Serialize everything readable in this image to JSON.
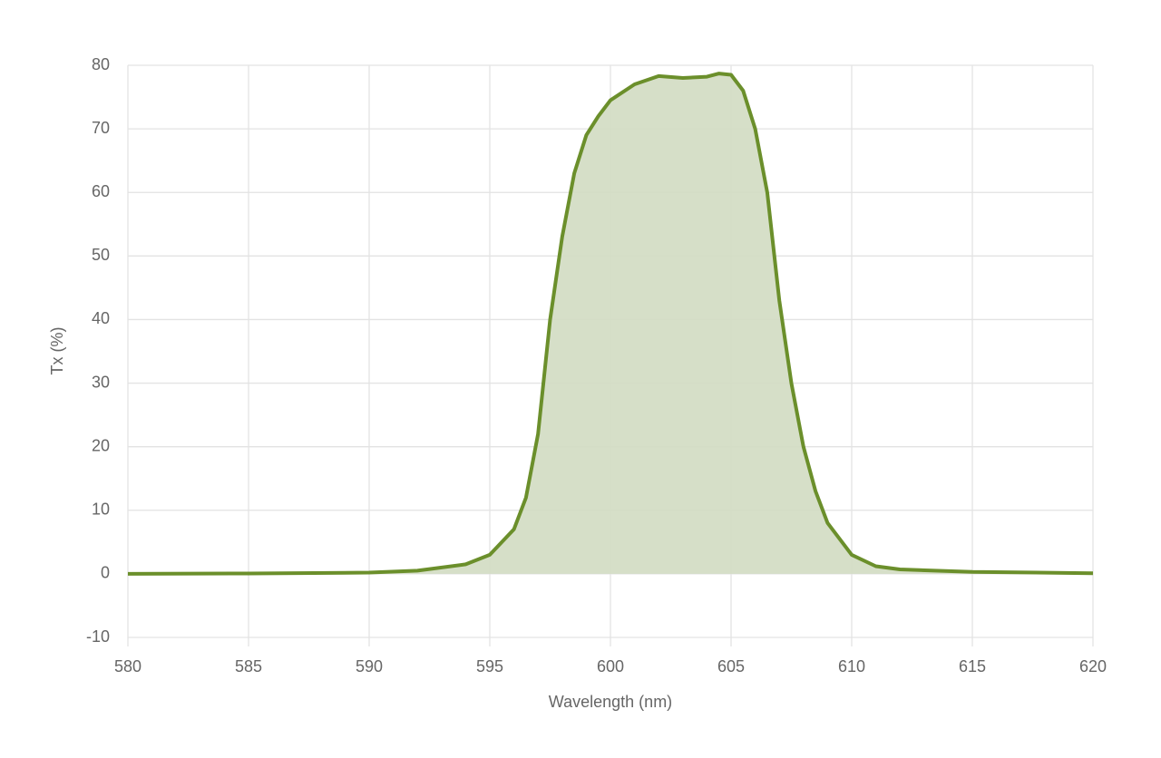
{
  "chart_data": {
    "type": "area",
    "x_label": "Wavelength (nm)",
    "y_label": "Tx (%)",
    "xlim": [
      580,
      620
    ],
    "ylim": [
      -10,
      80
    ],
    "xticks": [
      580,
      585,
      590,
      595,
      600,
      605,
      610,
      615,
      620
    ],
    "yticks": [
      -10,
      0,
      10,
      20,
      30,
      40,
      50,
      60,
      70,
      80
    ],
    "grid": true,
    "series": [
      {
        "color": "#6b8f2b",
        "fill": "#d2dcc2",
        "x": [
          580,
          585,
          590,
          592,
          594,
          595,
          596,
          596.5,
          597,
          597.5,
          598,
          598.5,
          599,
          599.5,
          600,
          601,
          602,
          603,
          604,
          604.5,
          605,
          605.5,
          606,
          606.5,
          607,
          607.5,
          608,
          608.5,
          609,
          610,
          611,
          612,
          615,
          620
        ],
        "values": [
          0,
          0.05,
          0.2,
          0.5,
          1.5,
          3,
          7,
          12,
          22,
          40,
          53,
          63,
          69,
          72,
          74.5,
          77,
          78.3,
          78,
          78.2,
          78.7,
          78.5,
          76,
          70,
          60,
          43,
          30,
          20,
          13,
          8,
          3,
          1.2,
          0.7,
          0.3,
          0.1
        ]
      }
    ]
  }
}
